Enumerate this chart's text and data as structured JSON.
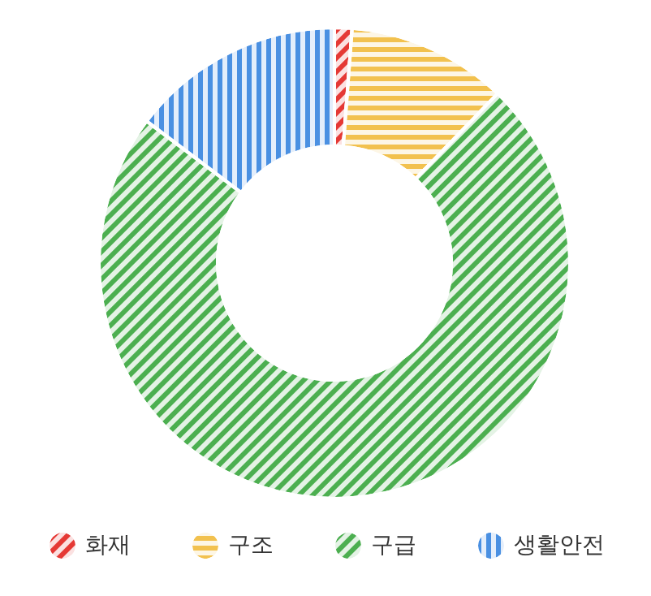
{
  "chart_data": {
    "type": "donut",
    "categories": [
      "화재",
      "구조",
      "구급",
      "생활안전"
    ],
    "values": [
      1.2,
      11.0,
      73.1,
      14.7
    ],
    "colors": [
      "#e53935",
      "#f2c14e",
      "#4caf50",
      "#4a90e2"
    ],
    "legend": "bottom"
  }
}
